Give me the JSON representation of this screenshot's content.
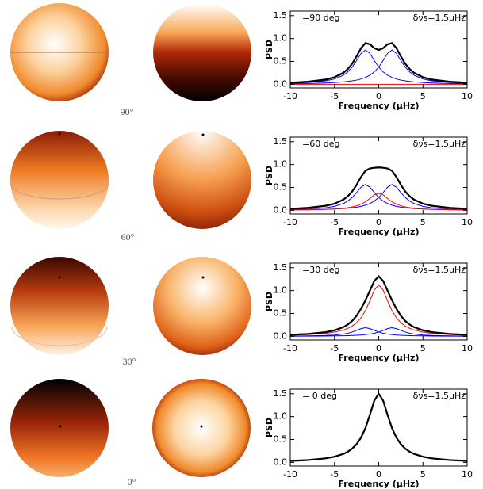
{
  "sphere_labels": [
    "90°",
    "60°",
    "30°",
    "0°"
  ],
  "chart_data": [
    {
      "type": "line",
      "annotations": [
        "i=90 deg",
        "δνs=1.5μHz"
      ],
      "xlabel": "Frequency (μHz)",
      "ylabel": "PSD",
      "xlim": [
        -10,
        10
      ],
      "ylim": [
        -0.08,
        1.6
      ],
      "xticks": [
        -10,
        -5,
        0,
        5,
        10
      ],
      "yticks": [
        {
          "value": 0,
          "label": "0.0"
        },
        0.5,
        {
          "value": 1,
          "label": "1.0"
        },
        1.5
      ],
      "x": [
        -10,
        -8,
        -6,
        -5,
        -4,
        -3.5,
        -3,
        -2.5,
        -2,
        -1.5,
        -1,
        -0.5,
        0,
        0.5,
        1,
        1.5,
        2,
        2.5,
        3,
        3.5,
        4,
        5,
        6,
        8,
        10
      ],
      "series": [
        {
          "color": "#0000ff",
          "values": [
            0.013,
            0.018,
            0.029,
            0.038,
            0.052,
            0.062,
            0.075,
            0.092,
            0.116,
            0.15,
            0.199,
            0.27,
            0.375,
            0.519,
            0.675,
            0.75,
            0.675,
            0.519,
            0.375,
            0.27,
            0.199,
            0.116,
            0.075,
            0.038,
            0.023
          ]
        },
        {
          "color": "#0000ff",
          "values": [
            0.023,
            0.038,
            0.075,
            0.116,
            0.199,
            0.27,
            0.375,
            0.519,
            0.675,
            0.75,
            0.675,
            0.519,
            0.375,
            0.27,
            0.199,
            0.15,
            0.116,
            0.092,
            0.075,
            0.062,
            0.052,
            0.038,
            0.029,
            0.018,
            0.013
          ]
        },
        {
          "color": "#ff0000",
          "values": [
            0,
            0,
            0,
            0,
            0,
            0,
            0,
            0,
            0,
            0,
            0,
            0,
            0,
            0,
            0,
            0,
            0,
            0,
            0,
            0,
            0,
            0,
            0,
            0,
            0
          ]
        },
        {
          "color": "#000000",
          "values": [
            0.036,
            0.056,
            0.104,
            0.154,
            0.251,
            0.332,
            0.45,
            0.611,
            0.791,
            0.9,
            0.874,
            0.789,
            0.75,
            0.789,
            0.874,
            0.9,
            0.791,
            0.611,
            0.45,
            0.332,
            0.251,
            0.154,
            0.104,
            0.056,
            0.036
          ]
        }
      ]
    },
    {
      "type": "line",
      "annotations": [
        "i=60 deg",
        "δνs=1.5μHz"
      ],
      "xlabel": "Frequency (μHz)",
      "ylabel": "PSD",
      "xlim": [
        -10,
        10
      ],
      "ylim": [
        -0.08,
        1.6
      ],
      "xticks": [
        -10,
        -5,
        0,
        5,
        10
      ],
      "yticks": [
        {
          "value": 0,
          "label": "0.0"
        },
        0.5,
        {
          "value": 1,
          "label": "1.0"
        },
        1.5
      ],
      "x": [
        -10,
        -8,
        -6,
        -5,
        -4,
        -3.5,
        -3,
        -2.5,
        -2,
        -1.5,
        -1,
        -0.5,
        0,
        0.5,
        1,
        1.5,
        2,
        2.5,
        3,
        3.5,
        4,
        5,
        6,
        8,
        10
      ],
      "series": [
        {
          "color": "#0000ff",
          "values": [
            0.009,
            0.014,
            0.022,
            0.028,
            0.039,
            0.047,
            0.056,
            0.069,
            0.087,
            0.113,
            0.149,
            0.203,
            0.281,
            0.389,
            0.506,
            0.563,
            0.506,
            0.389,
            0.281,
            0.203,
            0.149,
            0.087,
            0.056,
            0.028,
            0.017
          ]
        },
        {
          "color": "#0000ff",
          "values": [
            0.017,
            0.028,
            0.056,
            0.087,
            0.149,
            0.203,
            0.281,
            0.389,
            0.506,
            0.563,
            0.506,
            0.389,
            0.281,
            0.203,
            0.149,
            0.113,
            0.087,
            0.069,
            0.056,
            0.047,
            0.039,
            0.028,
            0.022,
            0.014,
            0.009
          ]
        },
        {
          "color": "#ff0000",
          "values": [
            0.008,
            0.013,
            0.022,
            0.031,
            0.046,
            0.058,
            0.075,
            0.099,
            0.135,
            0.188,
            0.26,
            0.338,
            0.375,
            0.338,
            0.26,
            0.188,
            0.135,
            0.099,
            0.075,
            0.058,
            0.046,
            0.031,
            0.022,
            0.013,
            0.008
          ]
        },
        {
          "color": "#000000",
          "values": [
            0.034,
            0.055,
            0.1,
            0.146,
            0.234,
            0.308,
            0.412,
            0.557,
            0.728,
            0.864,
            0.915,
            0.93,
            0.937,
            0.93,
            0.915,
            0.864,
            0.728,
            0.557,
            0.412,
            0.308,
            0.234,
            0.146,
            0.1,
            0.055,
            0.034
          ]
        }
      ]
    },
    {
      "type": "line",
      "annotations": [
        "i=30 deg",
        "δνs=1.5μHz"
      ],
      "xlabel": "Frequency (μHz)",
      "ylabel": "PSD",
      "xlim": [
        -10,
        10
      ],
      "ylim": [
        -0.08,
        1.6
      ],
      "xticks": [
        -10,
        -5,
        0,
        5,
        10
      ],
      "yticks": [
        {
          "value": 0,
          "label": "0.0"
        },
        0.5,
        {
          "value": 1,
          "label": "1.0"
        },
        1.5
      ],
      "x": [
        -10,
        -8,
        -6,
        -5,
        -4,
        -3.5,
        -3,
        -2.5,
        -2,
        -1.5,
        -1,
        -0.5,
        0,
        0.5,
        1,
        1.5,
        2,
        2.5,
        3,
        3.5,
        4,
        5,
        6,
        8,
        10
      ],
      "series": [
        {
          "color": "#0000ff",
          "values": [
            0.003,
            0.005,
            0.007,
            0.01,
            0.013,
            0.016,
            0.019,
            0.023,
            0.029,
            0.038,
            0.05,
            0.068,
            0.094,
            0.13,
            0.169,
            0.188,
            0.169,
            0.13,
            0.094,
            0.068,
            0.05,
            0.029,
            0.019,
            0.01,
            0.006
          ]
        },
        {
          "color": "#0000ff",
          "values": [
            0.006,
            0.01,
            0.019,
            0.029,
            0.05,
            0.068,
            0.094,
            0.13,
            0.169,
            0.188,
            0.169,
            0.13,
            0.094,
            0.068,
            0.05,
            0.038,
            0.029,
            0.023,
            0.019,
            0.016,
            0.013,
            0.01,
            0.007,
            0.005,
            0.003
          ]
        },
        {
          "color": "#ff0000",
          "values": [
            0.025,
            0.038,
            0.066,
            0.093,
            0.138,
            0.174,
            0.225,
            0.298,
            0.405,
            0.563,
            0.779,
            1.013,
            1.125,
            1.013,
            0.779,
            0.563,
            0.405,
            0.298,
            0.225,
            0.174,
            0.138,
            0.093,
            0.066,
            0.038,
            0.025
          ]
        },
        {
          "color": "#000000",
          "values": [
            0.034,
            0.053,
            0.092,
            0.132,
            0.201,
            0.258,
            0.338,
            0.451,
            0.603,
            0.789,
            0.998,
            1.211,
            1.313,
            1.211,
            0.998,
            0.789,
            0.603,
            0.451,
            0.338,
            0.258,
            0.201,
            0.132,
            0.092,
            0.053,
            0.034
          ]
        }
      ]
    },
    {
      "type": "line",
      "annotations": [
        "i= 0 deg",
        "δνs=1.5μHz"
      ],
      "xlabel": "Frequency (μHz)",
      "ylabel": "PSD",
      "xlim": [
        -10,
        10
      ],
      "ylim": [
        -0.08,
        1.6
      ],
      "xticks": [
        -10,
        -5,
        0,
        5,
        10
      ],
      "yticks": [
        {
          "value": 0,
          "label": "0.0"
        },
        0.5,
        {
          "value": 1,
          "label": "1.0"
        },
        1.5
      ],
      "x": [
        -10,
        -8,
        -6,
        -5,
        -4,
        -3.5,
        -3,
        -2.5,
        -2,
        -1.5,
        -1,
        -0.5,
        0,
        0.5,
        1,
        1.5,
        2,
        2.5,
        3,
        3.5,
        4,
        5,
        6,
        8,
        10
      ],
      "series": [
        {
          "color": "#000000",
          "values": [
            0.033,
            0.051,
            0.088,
            0.124,
            0.185,
            0.233,
            0.3,
            0.398,
            0.54,
            0.75,
            1.038,
            1.35,
            1.5,
            1.35,
            1.038,
            0.75,
            0.54,
            0.398,
            0.3,
            0.233,
            0.185,
            0.124,
            0.088,
            0.051,
            0.033
          ]
        }
      ]
    }
  ]
}
